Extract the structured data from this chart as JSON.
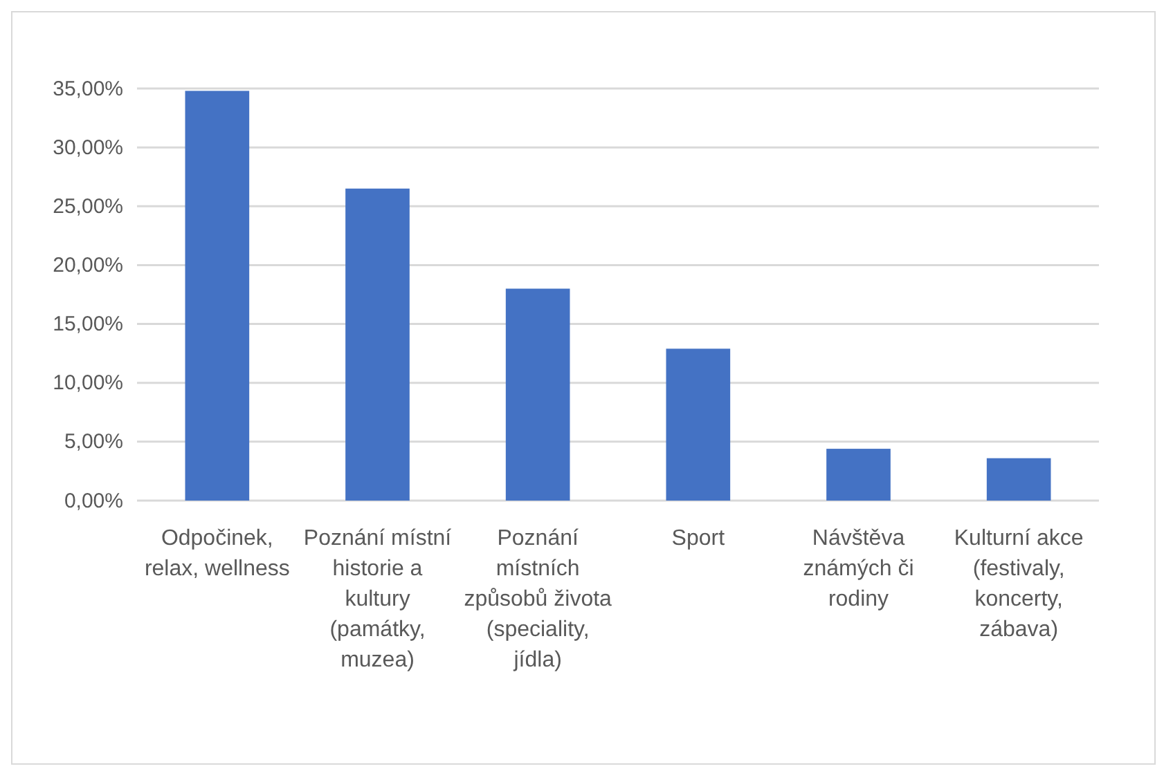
{
  "chart_data": {
    "type": "bar",
    "categories": [
      "Odpočinek, relax, wellness",
      "Poznání místní historie a kultury (památky, muzea)",
      "Poznání místních způsobů života (speciality, jídla)",
      "Sport",
      "Návštěva známých či rodiny",
      "Kulturní akce (festivaly, koncerty, zábava)"
    ],
    "values": [
      34.8,
      26.5,
      18.0,
      12.9,
      4.4,
      3.6
    ],
    "color": "#4472c4",
    "ylim": [
      0,
      35
    ],
    "yticks": [
      {
        "value": 0,
        "label": "0,00%"
      },
      {
        "value": 5,
        "label": "5,00%"
      },
      {
        "value": 10,
        "label": "10,00%"
      },
      {
        "value": 15,
        "label": "15,00%"
      },
      {
        "value": 20,
        "label": "20,00%"
      },
      {
        "value": 25,
        "label": "25,00%"
      },
      {
        "value": 30,
        "label": "30,00%"
      },
      {
        "value": 35,
        "label": "35,00%"
      }
    ],
    "grid": true
  }
}
